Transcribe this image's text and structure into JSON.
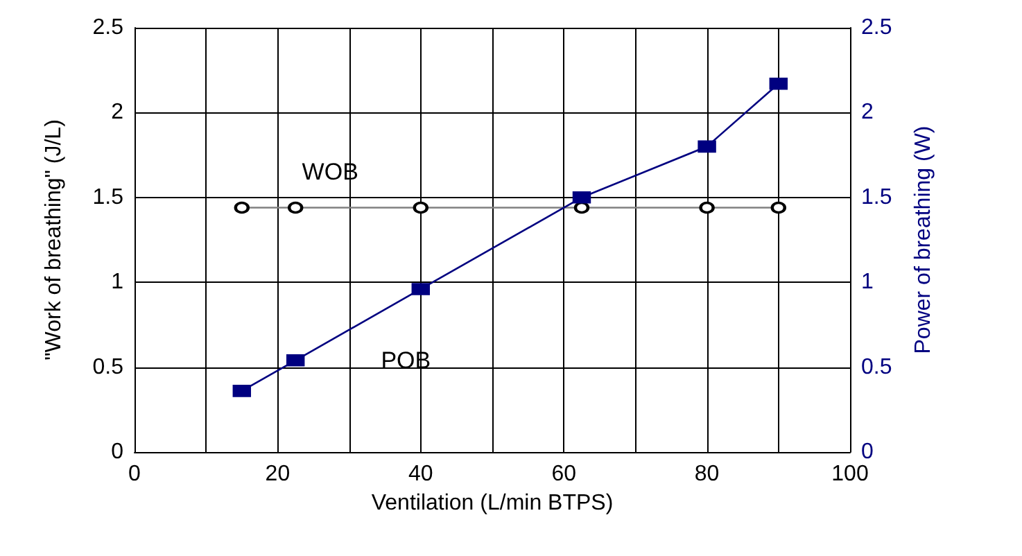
{
  "chart_data": {
    "type": "line",
    "xlabel": "Ventilation (L/min BTPS)",
    "ylabel": "\"Work of breathing\" (J/L)",
    "y2label": "Power of breathing (W)",
    "series": [
      {
        "name": "WOB",
        "color": "#000000",
        "marker": "circle",
        "x": [
          15,
          22.5,
          40,
          62.5,
          80,
          90
        ],
        "values": [
          1.44,
          1.44,
          1.44,
          1.44,
          1.44,
          1.44
        ]
      },
      {
        "name": "POB",
        "color": "#000080",
        "marker": "square",
        "axis": "y2",
        "x": [
          15,
          22.5,
          40,
          62.5,
          80,
          90
        ],
        "values": [
          0.36,
          0.54,
          0.96,
          1.5,
          1.8,
          2.17
        ]
      }
    ],
    "xlim": [
      0,
      100
    ],
    "xticks": [
      0,
      {
        "value": 10,
        "label": null
      },
      20,
      {
        "value": 30,
        "label": null
      },
      40,
      {
        "value": 50,
        "label": null
      },
      60,
      {
        "value": 70,
        "label": null
      },
      80,
      {
        "value": 90,
        "label": null
      },
      100
    ],
    "ylim": [
      0,
      2.5
    ],
    "yticks": [
      0,
      0.5,
      1,
      1.5,
      2,
      2.5
    ],
    "y2lim": [
      0,
      2.5
    ],
    "y2ticks": [
      0,
      0.5,
      1,
      1.5,
      2,
      2.5
    ],
    "grid": true,
    "legend": false
  }
}
